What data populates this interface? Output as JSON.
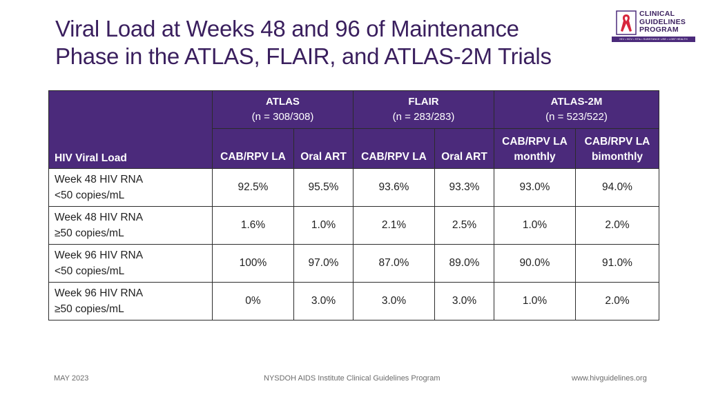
{
  "title_line1": "Viral Load at Weeks 48 and 96 of Maintenance",
  "title_line2": "Phase in the ATLAS, FLAIR, and ATLAS-2M Trials",
  "logo": {
    "line1": "CLINICAL",
    "line2": "GUIDELINES",
    "line3": "PROGRAM",
    "bar": "HIV • HCV • STIs • SUBSTANCE USE • LGBT HEALTH",
    "ribbon_color": "#d7263d"
  },
  "table": {
    "row_header": "HIV Viral Load",
    "groups": [
      {
        "name": "ATLAS",
        "n": "(n = 308/308)"
      },
      {
        "name": "FLAIR",
        "n": "(n = 283/283)"
      },
      {
        "name": "ATLAS-2M",
        "n": "(n = 523/522)"
      }
    ],
    "subcols": [
      "CAB/RPV LA",
      "Oral ART",
      "CAB/RPV LA",
      "Oral ART",
      "CAB/RPV LA monthly",
      "CAB/RPV LA bimonthly"
    ],
    "rows": [
      {
        "l1": "Week 48 HIV RNA",
        "l2": "<50 copies/mL",
        "v": [
          "92.5%",
          "95.5%",
          "93.6%",
          "93.3%",
          "93.0%",
          "94.0%"
        ]
      },
      {
        "l1": "Week 48 HIV RNA",
        "l2": "≥50 copies/mL",
        "v": [
          "1.6%",
          "1.0%",
          "2.1%",
          "2.5%",
          "1.0%",
          "2.0%"
        ]
      },
      {
        "l1": "Week 96 HIV RNA",
        "l2": "<50 copies/mL",
        "v": [
          "100%",
          "97.0%",
          "87.0%",
          "89.0%",
          "90.0%",
          "91.0%"
        ]
      },
      {
        "l1": "Week 96 HIV RNA",
        "l2": "≥50 copies/mL",
        "v": [
          "0%",
          "3.0%",
          "3.0%",
          "3.0%",
          "1.0%",
          "2.0%"
        ]
      }
    ]
  },
  "footer": {
    "date": "MAY 2023",
    "org": "NYSDOH AIDS Institute Clinical Guidelines Program",
    "url": "www.hivguidelines.org"
  },
  "colors": {
    "header_bg": "#4b2a7b",
    "title": "#3a1f5e",
    "border": "#2b2b2b"
  }
}
